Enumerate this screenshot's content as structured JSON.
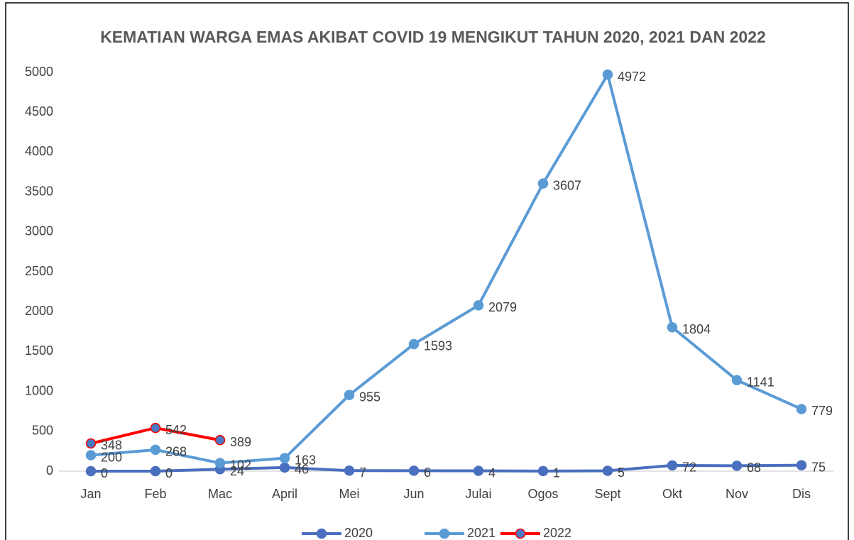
{
  "chart_data": {
    "type": "line",
    "title": "KEMATIAN WARGA EMAS AKIBAT COVID 19 MENGIKUT TAHUN 2020, 2021 DAN 2022",
    "categories": [
      "Jan",
      "Feb",
      "Mac",
      "April",
      "Mei",
      "Jun",
      "Julai",
      "Ogos",
      "Sept",
      "Okt",
      "Nov",
      "Dis"
    ],
    "series": [
      {
        "name": "2020",
        "color": "#4a6fbf",
        "marker_color": "#4a6fbf",
        "values": [
          0,
          0,
          24,
          46,
          7,
          6,
          4,
          1,
          5,
          72,
          68,
          75
        ]
      },
      {
        "name": "2021",
        "color": "#5b9bd5",
        "marker_color": "#5b9bd5",
        "values": [
          200,
          268,
          102,
          163,
          955,
          1593,
          2079,
          3607,
          4972,
          1804,
          1141,
          779
        ]
      },
      {
        "name": "2022",
        "color": "#ff0000",
        "marker_color": "#4a78c4",
        "values": [
          348,
          542,
          389,
          null,
          null,
          null,
          null,
          null,
          null,
          null,
          null,
          null
        ]
      }
    ],
    "ylim": [
      0,
      5000
    ],
    "yticks": [
      0,
      500,
      1000,
      1500,
      2000,
      2500,
      3000,
      3500,
      4000,
      4500,
      5000
    ],
    "grid": false,
    "legend": "bottom",
    "data_labels": true
  }
}
